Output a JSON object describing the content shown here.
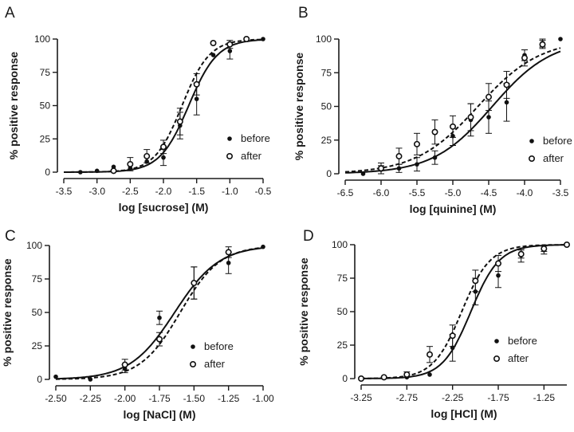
{
  "chart_data": [
    {
      "panel": "A",
      "type": "line",
      "xlabel": "log [sucrose] (M)",
      "ylabel": "% positive response",
      "xlim": [
        -3.5,
        -0.5
      ],
      "ylim": [
        0,
        100
      ],
      "xticks": [
        -3.5,
        -3.0,
        -2.5,
        -2.0,
        -1.5,
        -1.0,
        -0.5
      ],
      "xtick_labels": [
        "-3.5",
        "-3.0",
        "-2.5",
        "-2.0",
        "-1.5",
        "-1.0",
        "-0.5"
      ],
      "yticks": [
        0,
        25,
        50,
        75,
        100
      ],
      "ytick_labels": [
        "0",
        "25",
        "50",
        "75",
        "100"
      ],
      "series": [
        {
          "name": "before",
          "marker": "filled",
          "curve": "solid",
          "fit": {
            "bottom": 0,
            "top": 100,
            "logEC50": -1.62,
            "hill": 2.0
          },
          "points": [
            {
              "x": -3.25,
              "y": 0,
              "err": 0
            },
            {
              "x": -3.0,
              "y": 1,
              "err": 0
            },
            {
              "x": -2.75,
              "y": 4,
              "err": 0
            },
            {
              "x": -2.5,
              "y": 3,
              "err": 0
            },
            {
              "x": -2.25,
              "y": 8,
              "err": 0
            },
            {
              "x": -2.0,
              "y": 11,
              "err": 6
            },
            {
              "x": -1.75,
              "y": 35,
              "err": 10
            },
            {
              "x": -1.5,
              "y": 55,
              "err": 12
            },
            {
              "x": -1.25,
              "y": 88,
              "err": 0
            },
            {
              "x": -1.0,
              "y": 91,
              "err": 6
            },
            {
              "x": -0.75,
              "y": 100,
              "err": 0
            },
            {
              "x": -0.5,
              "y": 100,
              "err": 0
            }
          ]
        },
        {
          "name": "after",
          "marker": "open",
          "curve": "dashed",
          "fit": {
            "bottom": 0,
            "top": 100,
            "logEC50": -1.72,
            "hill": 2.1
          },
          "points": [
            {
              "x": -2.75,
              "y": 1,
              "err": 0
            },
            {
              "x": -2.5,
              "y": 6,
              "err": 5
            },
            {
              "x": -2.25,
              "y": 12,
              "err": 5
            },
            {
              "x": -2.0,
              "y": 19,
              "err": 5
            },
            {
              "x": -1.75,
              "y": 38,
              "err": 10
            },
            {
              "x": -1.5,
              "y": 66,
              "err": 8
            },
            {
              "x": -1.25,
              "y": 97,
              "err": 0
            },
            {
              "x": -1.0,
              "y": 96,
              "err": 3
            },
            {
              "x": -0.75,
              "y": 100,
              "err": 0
            }
          ]
        }
      ],
      "legend": [
        "before",
        "after"
      ]
    },
    {
      "panel": "B",
      "type": "line",
      "xlabel": "log [quinine] (M)",
      "ylabel": "% positive response",
      "xlim": [
        -6.5,
        -3.5
      ],
      "ylim": [
        0,
        100
      ],
      "xticks": [
        -6.5,
        -6.0,
        -5.5,
        -5.0,
        -4.5,
        -4.0,
        -3.5
      ],
      "xtick_labels": [
        "-6.5",
        "-6.0",
        "-5.5",
        "-5.0",
        "-4.5",
        "-4.0",
        "-3.5"
      ],
      "yticks": [
        0,
        25,
        50,
        75,
        100
      ],
      "ytick_labels": [
        "0",
        "25",
        "50",
        "75",
        "100"
      ],
      "series": [
        {
          "name": "before",
          "marker": "filled",
          "curve": "solid",
          "fit": {
            "bottom": 0,
            "top": 100,
            "logEC50": -4.45,
            "hill": 1.05
          },
          "points": [
            {
              "x": -6.25,
              "y": 0,
              "err": 0
            },
            {
              "x": -6.0,
              "y": 3,
              "err": 3
            },
            {
              "x": -5.75,
              "y": 4,
              "err": 3
            },
            {
              "x": -5.5,
              "y": 7,
              "err": 5
            },
            {
              "x": -5.25,
              "y": 12,
              "err": 5
            },
            {
              "x": -5.0,
              "y": 28,
              "err": 7
            },
            {
              "x": -4.75,
              "y": 40,
              "err": 12
            },
            {
              "x": -4.5,
              "y": 42,
              "err": 12
            },
            {
              "x": -4.25,
              "y": 53,
              "err": 14
            },
            {
              "x": -4.0,
              "y": 88,
              "err": 4
            },
            {
              "x": -3.75,
              "y": 97,
              "err": 3
            },
            {
              "x": -3.5,
              "y": 100,
              "err": 0
            }
          ]
        },
        {
          "name": "after",
          "marker": "open",
          "curve": "dashed",
          "fit": {
            "bottom": 0,
            "top": 100,
            "logEC50": -4.65,
            "hill": 1.0
          },
          "points": [
            {
              "x": -6.0,
              "y": 4,
              "err": 4
            },
            {
              "x": -5.75,
              "y": 13,
              "err": 6
            },
            {
              "x": -5.5,
              "y": 22,
              "err": 8
            },
            {
              "x": -5.25,
              "y": 31,
              "err": 9
            },
            {
              "x": -5.0,
              "y": 35,
              "err": 8
            },
            {
              "x": -4.75,
              "y": 42,
              "err": 10
            },
            {
              "x": -4.5,
              "y": 57,
              "err": 10
            },
            {
              "x": -4.25,
              "y": 66,
              "err": 10
            },
            {
              "x": -4.0,
              "y": 86,
              "err": 6
            },
            {
              "x": -3.75,
              "y": 96,
              "err": 3
            }
          ]
        }
      ],
      "legend": [
        "before",
        "after"
      ]
    },
    {
      "panel": "C",
      "type": "line",
      "xlabel": "log [NaCl] (M)",
      "ylabel": "% positive response",
      "xlim": [
        -2.5,
        -1.0
      ],
      "ylim": [
        0,
        100
      ],
      "xticks": [
        -2.5,
        -2.25,
        -2.0,
        -1.75,
        -1.5,
        -1.25,
        -1.0
      ],
      "xtick_labels": [
        "-2.50",
        "-2.25",
        "-2.00",
        "-1.75",
        "-1.50",
        "-1.25",
        "-1.00"
      ],
      "yticks": [
        0,
        25,
        50,
        75,
        100
      ],
      "ytick_labels": [
        "0",
        "25",
        "50",
        "75",
        "100"
      ],
      "series": [
        {
          "name": "before",
          "marker": "filled",
          "curve": "solid",
          "fit": {
            "bottom": 0,
            "top": 100,
            "logEC50": -1.64,
            "hill": 2.7
          },
          "points": [
            {
              "x": -2.5,
              "y": 2,
              "err": 0
            },
            {
              "x": -2.25,
              "y": 0,
              "err": 0
            },
            {
              "x": -2.0,
              "y": 8,
              "err": 3
            },
            {
              "x": -1.75,
              "y": 46,
              "err": 5
            },
            {
              "x": -1.5,
              "y": 72,
              "err": 12
            },
            {
              "x": -1.25,
              "y": 87,
              "err": 8
            },
            {
              "x": -1.0,
              "y": 99,
              "err": 0
            }
          ]
        },
        {
          "name": "after",
          "marker": "open",
          "curve": "dashed",
          "fit": {
            "bottom": 0,
            "top": 100,
            "logEC50": -1.6,
            "hill": 3.0
          },
          "points": [
            {
              "x": -2.0,
              "y": 11,
              "err": 4
            },
            {
              "x": -1.75,
              "y": 30,
              "err": 5
            },
            {
              "x": -1.5,
              "y": 72,
              "err": 12
            },
            {
              "x": -1.25,
              "y": 95,
              "err": 4
            }
          ]
        }
      ],
      "legend": [
        "before",
        "after"
      ]
    },
    {
      "panel": "D",
      "type": "line",
      "xlabel": "log [HCl] (M)",
      "ylabel": "% positive response",
      "xlim": [
        -3.25,
        -1.0
      ],
      "ylim": [
        0,
        100
      ],
      "xticks": [
        -3.25,
        -2.75,
        -2.25,
        -1.75,
        -1.25
      ],
      "xtick_labels": [
        "-3.25",
        "-2.75",
        "-2.25",
        "-1.75",
        "-1.25"
      ],
      "yticks": [
        0,
        25,
        50,
        75,
        100
      ],
      "ytick_labels": [
        "0",
        "25",
        "50",
        "75",
        "100"
      ],
      "series": [
        {
          "name": "before",
          "marker": "filled",
          "curve": "solid",
          "fit": {
            "bottom": 0,
            "top": 100,
            "logEC50": -2.05,
            "hill": 2.8
          },
          "points": [
            {
              "x": -3.0,
              "y": 1,
              "err": 0
            },
            {
              "x": -2.75,
              "y": 1,
              "err": 0
            },
            {
              "x": -2.5,
              "y": 3,
              "err": 0
            },
            {
              "x": -2.25,
              "y": 23,
              "err": 10
            },
            {
              "x": -2.0,
              "y": 65,
              "err": 10
            },
            {
              "x": -1.75,
              "y": 77,
              "err": 9
            },
            {
              "x": -1.5,
              "y": 92,
              "err": 5
            },
            {
              "x": -1.25,
              "y": 96,
              "err": 3
            },
            {
              "x": -1.0,
              "y": 100,
              "err": 0
            }
          ]
        },
        {
          "name": "after",
          "marker": "open",
          "curve": "dashed",
          "fit": {
            "bottom": 0,
            "top": 100,
            "logEC50": -2.15,
            "hill": 2.8
          },
          "points": [
            {
              "x": -3.25,
              "y": 0,
              "err": 0
            },
            {
              "x": -3.0,
              "y": 1,
              "err": 0
            },
            {
              "x": -2.75,
              "y": 3,
              "err": 2
            },
            {
              "x": -2.5,
              "y": 18,
              "err": 6
            },
            {
              "x": -2.25,
              "y": 32,
              "err": 8
            },
            {
              "x": -2.0,
              "y": 73,
              "err": 8
            },
            {
              "x": -1.75,
              "y": 86,
              "err": 6
            },
            {
              "x": -1.5,
              "y": 93,
              "err": 3
            },
            {
              "x": -1.25,
              "y": 97,
              "err": 2
            },
            {
              "x": -1.0,
              "y": 100,
              "err": 0
            }
          ]
        }
      ],
      "legend": [
        "before",
        "after"
      ]
    }
  ]
}
